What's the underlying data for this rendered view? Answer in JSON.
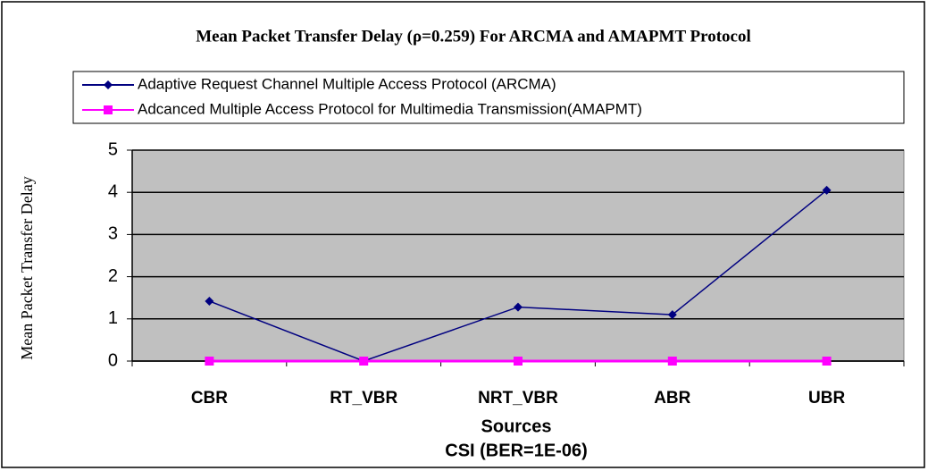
{
  "chart_data": {
    "type": "line",
    "title": "Mean Packet Transfer Delay (ρ=0.259) For ARCMA and AMAPMT Protocol",
    "xlabel": "Sources",
    "subtitle": "CSI (BER=1E-06)",
    "ylabel": "Mean Packet Transfer Delay",
    "categories": [
      "CBR",
      "RT_VBR",
      "NRT_VBR",
      "ABR",
      "UBR"
    ],
    "series": [
      {
        "name": "Adaptive Request Channel Multiple Access Protocol (ARCMA)",
        "color": "#000080",
        "marker": "diamond",
        "values": [
          1.42,
          0.0,
          1.28,
          1.1,
          4.05
        ]
      },
      {
        "name": "Adcanced Multiple Access Protocol for Multimedia Transmission(AMAPMT)",
        "color": "#ff00ff",
        "marker": "square",
        "values": [
          0,
          0,
          0,
          0,
          0
        ]
      }
    ],
    "ylim": [
      0,
      5
    ],
    "yticks": [
      0,
      1,
      2,
      3,
      4,
      5
    ],
    "grid": true,
    "legend": "top"
  }
}
